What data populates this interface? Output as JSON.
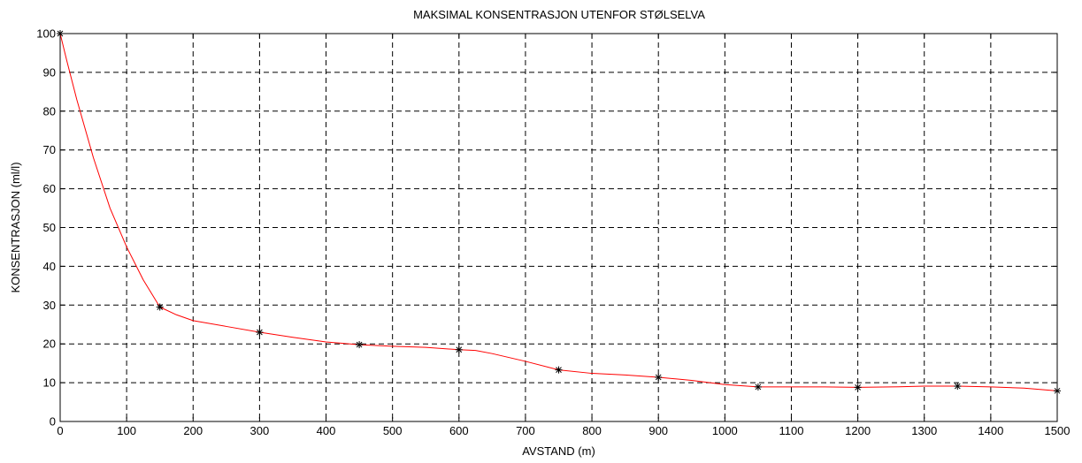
{
  "chart_data": {
    "type": "line",
    "title": "MAKSIMAL KONSENTRASJON UTENFOR STØLSELVA",
    "xlabel": "AVSTAND (m)",
    "ylabel": "KONSENTRASJON (ml/l)",
    "xlim": [
      0,
      1500
    ],
    "ylim": [
      0,
      100
    ],
    "xticks": [
      0,
      100,
      200,
      300,
      400,
      500,
      600,
      700,
      800,
      900,
      1000,
      1100,
      1200,
      1300,
      1400,
      1500
    ],
    "yticks": [
      0,
      10,
      20,
      30,
      40,
      50,
      60,
      70,
      80,
      90,
      100
    ],
    "grid": true,
    "line_color": "#ff0000",
    "marker_color": "#000000",
    "marker": "asterisk",
    "measured_points": [
      {
        "x": 0,
        "y": 100
      },
      {
        "x": 150,
        "y": 29.5
      },
      {
        "x": 300,
        "y": 23
      },
      {
        "x": 450,
        "y": 19.8
      },
      {
        "x": 600,
        "y": 18.5
      },
      {
        "x": 750,
        "y": 13.3
      },
      {
        "x": 900,
        "y": 11.4
      },
      {
        "x": 1050,
        "y": 8.9
      },
      {
        "x": 1200,
        "y": 8.8
      },
      {
        "x": 1350,
        "y": 9.1
      },
      {
        "x": 1500,
        "y": 7.9
      }
    ],
    "curve": [
      [
        0,
        100
      ],
      [
        10,
        93
      ],
      [
        25,
        83
      ],
      [
        50,
        68
      ],
      [
        75,
        55
      ],
      [
        100,
        45
      ],
      [
        125,
        36.5
      ],
      [
        150,
        29.5
      ],
      [
        175,
        27.5
      ],
      [
        200,
        26
      ],
      [
        250,
        24.5
      ],
      [
        300,
        23
      ],
      [
        350,
        21.7
      ],
      [
        400,
        20.5
      ],
      [
        450,
        19.8
      ],
      [
        500,
        19.4
      ],
      [
        550,
        19.1
      ],
      [
        600,
        18.5
      ],
      [
        625,
        18.3
      ],
      [
        650,
        17.5
      ],
      [
        700,
        15.5
      ],
      [
        750,
        13.3
      ],
      [
        800,
        12.4
      ],
      [
        850,
        12
      ],
      [
        900,
        11.4
      ],
      [
        950,
        10.6
      ],
      [
        1000,
        9.5
      ],
      [
        1050,
        8.9
      ],
      [
        1100,
        8.9
      ],
      [
        1150,
        8.9
      ],
      [
        1200,
        8.8
      ],
      [
        1250,
        8.9
      ],
      [
        1300,
        9.1
      ],
      [
        1350,
        9.1
      ],
      [
        1400,
        8.9
      ],
      [
        1450,
        8.6
      ],
      [
        1500,
        7.9
      ]
    ]
  }
}
